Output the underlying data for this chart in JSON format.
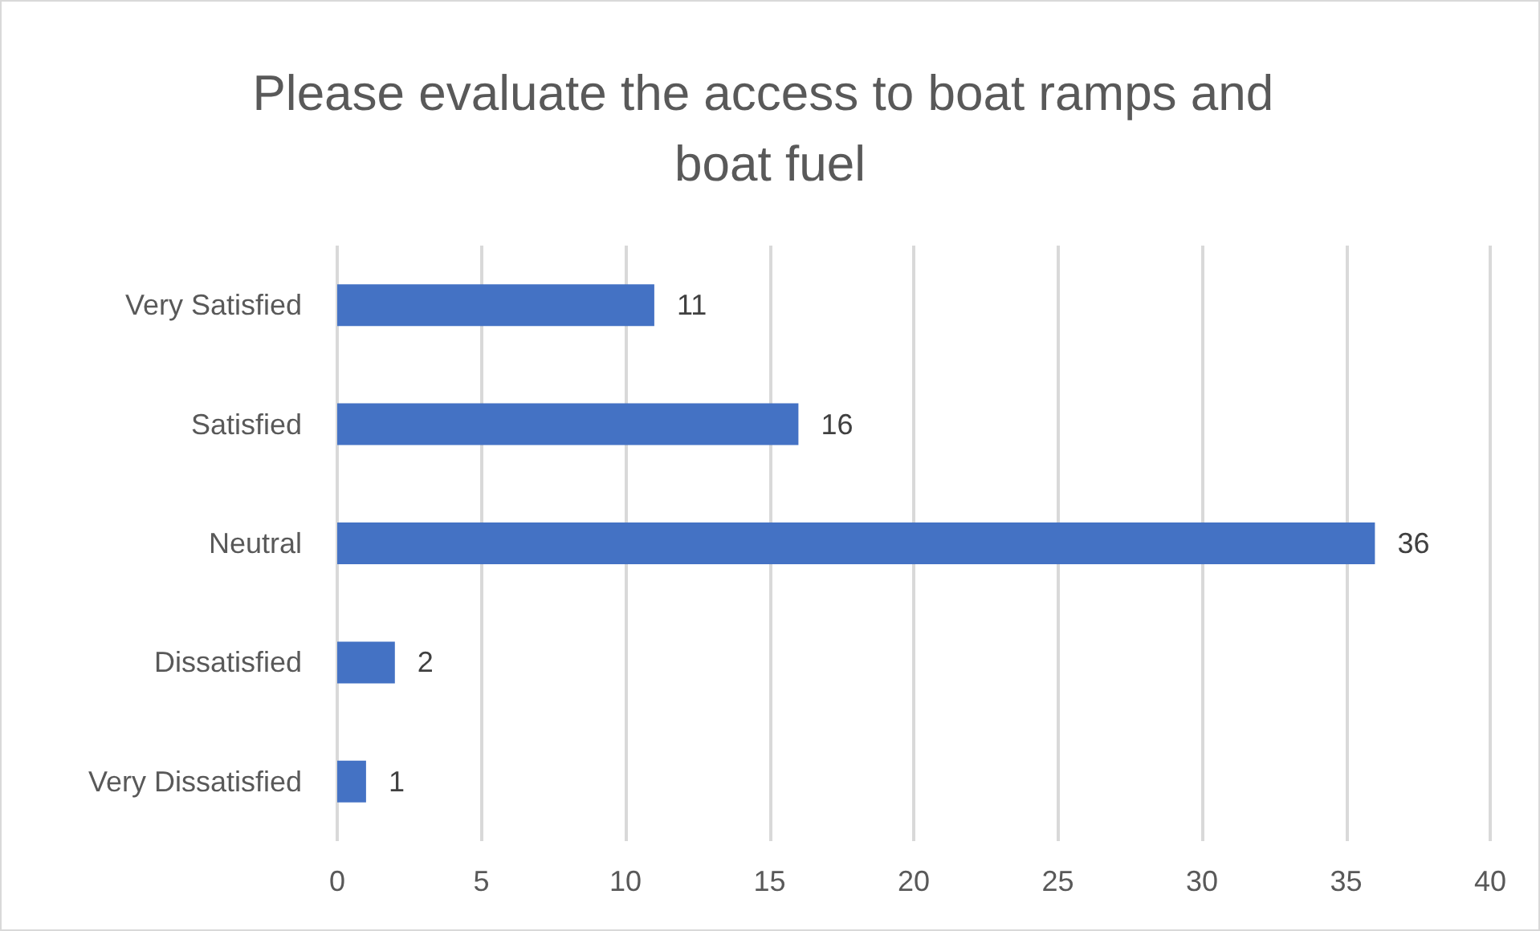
{
  "chart_data": {
    "type": "bar",
    "orientation": "horizontal",
    "title": "Please evaluate the access to boat ramps and boat fuel",
    "categories": [
      "Very Satisfied",
      "Satisfied",
      "Neutral",
      "Dissatisfied",
      "Very Dissatisfied"
    ],
    "values": [
      11,
      16,
      36,
      2,
      1
    ],
    "color": "#4472c4",
    "xlim": [
      0,
      40
    ],
    "xticks": [
      0,
      5,
      10,
      15,
      20,
      25,
      30,
      35,
      40
    ],
    "grid": "x",
    "data_labels": true
  }
}
